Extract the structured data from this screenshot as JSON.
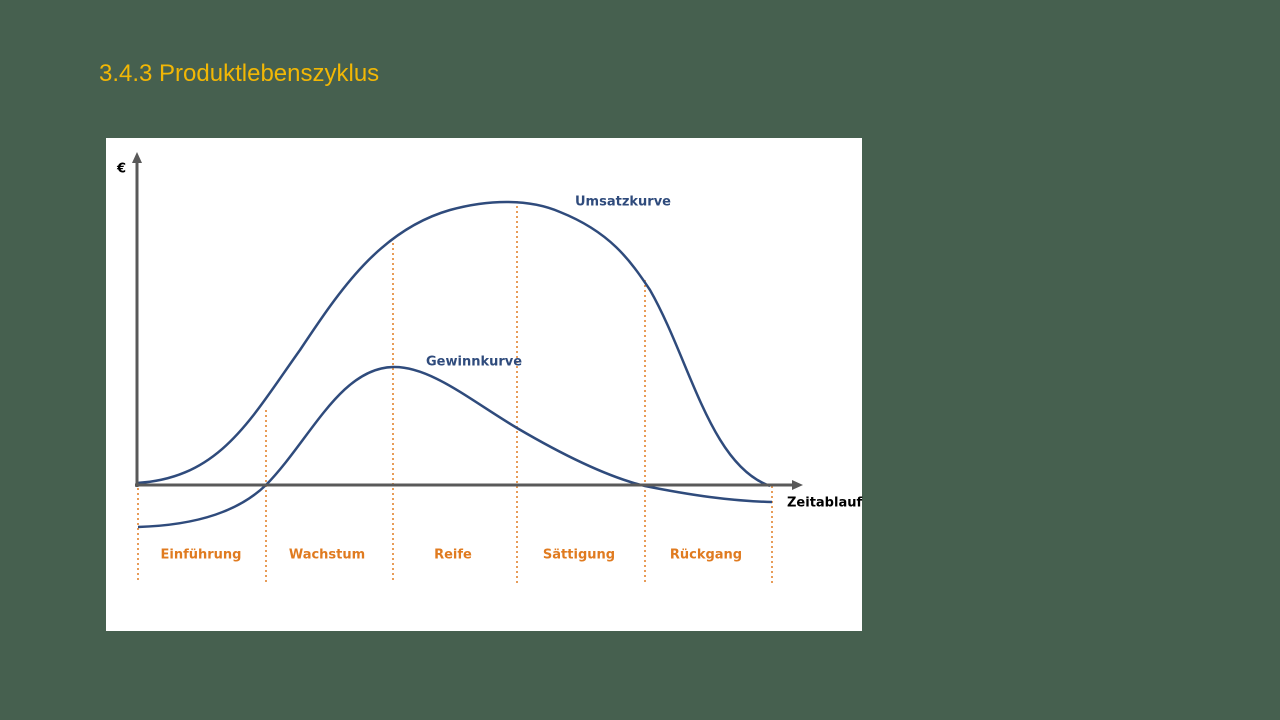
{
  "header": {
    "title": "3.4.3 Produktlebenszyklus"
  },
  "diagram": {
    "y_axis_label": "€",
    "x_axis_label": "Zeitablauf",
    "curves": [
      "Umsatzkurve",
      "Gewinnkurve"
    ],
    "phases": [
      "Einführung",
      "Wachstum",
      "Reife",
      "Sättigung",
      "Rückgang"
    ]
  }
}
